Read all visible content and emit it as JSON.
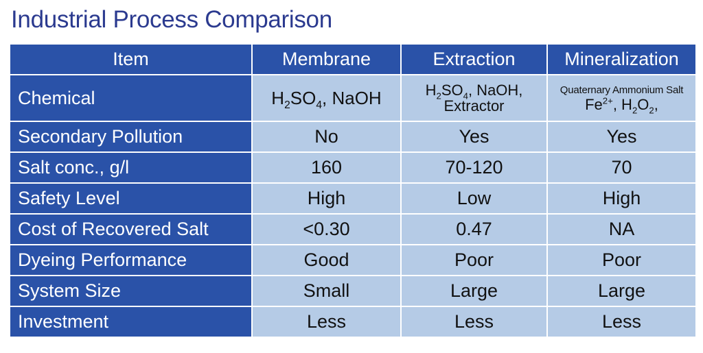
{
  "title": "Industrial Process Comparison",
  "table": {
    "header": {
      "item": "Item",
      "membrane": "Membrane",
      "extraction": "Extraction",
      "mineralization": "Mineralization"
    },
    "chemical": {
      "label": "Chemical",
      "membrane": {
        "h": "H",
        "h_sub": "2",
        "so": "SO",
        "so_sub": "4",
        "rest": ", NaOH"
      },
      "extraction": {
        "h": "H",
        "h_sub": "2",
        "so": "SO",
        "so_sub": "4",
        "rest": ", NaOH,",
        "line2": "Extractor"
      },
      "mineralization": {
        "line1": "Quaternary Ammonium Salt",
        "fe": "Fe",
        "fe_sup": "2+",
        "sep": ", H",
        "h_sub": "2",
        "o": "O",
        "o_sub": "2",
        "end": ","
      }
    },
    "rows": [
      {
        "label": "Secondary Pollution",
        "membrane": "No",
        "extraction": "Yes",
        "mineralization": "Yes"
      },
      {
        "label": "Salt conc., g/l",
        "membrane": "160",
        "extraction": "70-120",
        "mineralization": "70"
      },
      {
        "label": "Safety Level",
        "membrane": "High",
        "extraction": "Low",
        "mineralization": "High"
      },
      {
        "label": "Cost of Recovered Salt",
        "membrane": "<0.30",
        "extraction": "0.47",
        "mineralization": "NA"
      },
      {
        "label": "Dyeing Performance",
        "membrane": "Good",
        "extraction": "Poor",
        "mineralization": "Poor"
      },
      {
        "label": "System Size",
        "membrane": "Small",
        "extraction": "Large",
        "mineralization": "Large"
      },
      {
        "label": "Investment",
        "membrane": "Less",
        "extraction": "Less",
        "mineralization": "Less"
      }
    ]
  },
  "colors": {
    "title": "#2b3a8f",
    "header_bg": "#2a52a8",
    "cell_bg": "#b5cbe6"
  }
}
